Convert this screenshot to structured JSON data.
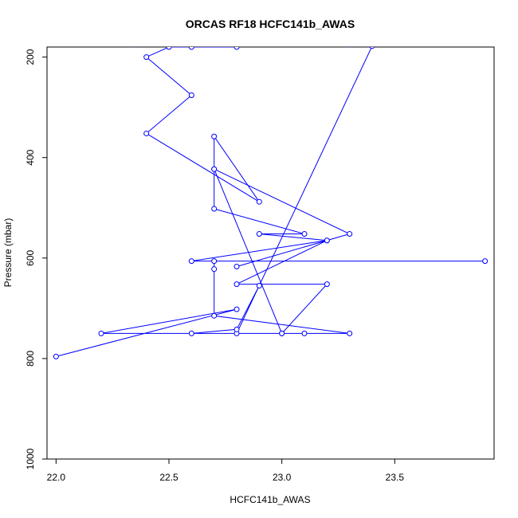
{
  "chart_data": {
    "type": "line",
    "title": "ORCAS RF18 HCFC141b_AWAS",
    "xlabel": "HCFC141b_AWAS",
    "ylabel": "Pressure (mbar)",
    "xlim": [
      21.96,
      23.94
    ],
    "ylim": [
      1000,
      180
    ],
    "y_inverted": true,
    "x_ticks": [
      22.0,
      22.5,
      23.0,
      23.5
    ],
    "x_tick_labels": [
      "22.0",
      "22.5",
      "23.0",
      "23.5"
    ],
    "y_ticks": [
      200,
      400,
      600,
      800,
      1000
    ],
    "y_tick_labels": [
      "200",
      "400",
      "600",
      "800",
      "1000"
    ],
    "grid": false,
    "legend": "none",
    "line_color": "#0000ff",
    "marker": "open-circle",
    "series": [
      {
        "x": [
          22.0,
          22.8,
          22.2,
          23.3,
          22.7,
          22.7,
          22.7,
          23.9,
          22.6,
          23.2,
          22.8,
          23.3,
          22.7,
          22.7,
          22.9,
          22.4,
          22.6,
          22.4,
          22.5,
          22.8,
          22.6,
          22.35,
          22.55,
          23.3,
          23.4,
          22.8,
          23.1,
          23.0,
          23.2,
          22.8,
          23.2,
          22.9,
          23.1,
          22.7,
          22.7,
          23.0,
          22.6,
          22.8,
          22.9
        ],
        "y": [
          796,
          702,
          750,
          750,
          715,
          622,
          606,
          606,
          606,
          565,
          617,
          552,
          423,
          358,
          488,
          352,
          276,
          200,
          180,
          180,
          180,
          175,
          172,
          175,
          178,
          750,
          750,
          750,
          652,
          652,
          565,
          552,
          552,
          502,
          423,
          750,
          750,
          742,
          655
        ]
      }
    ]
  }
}
